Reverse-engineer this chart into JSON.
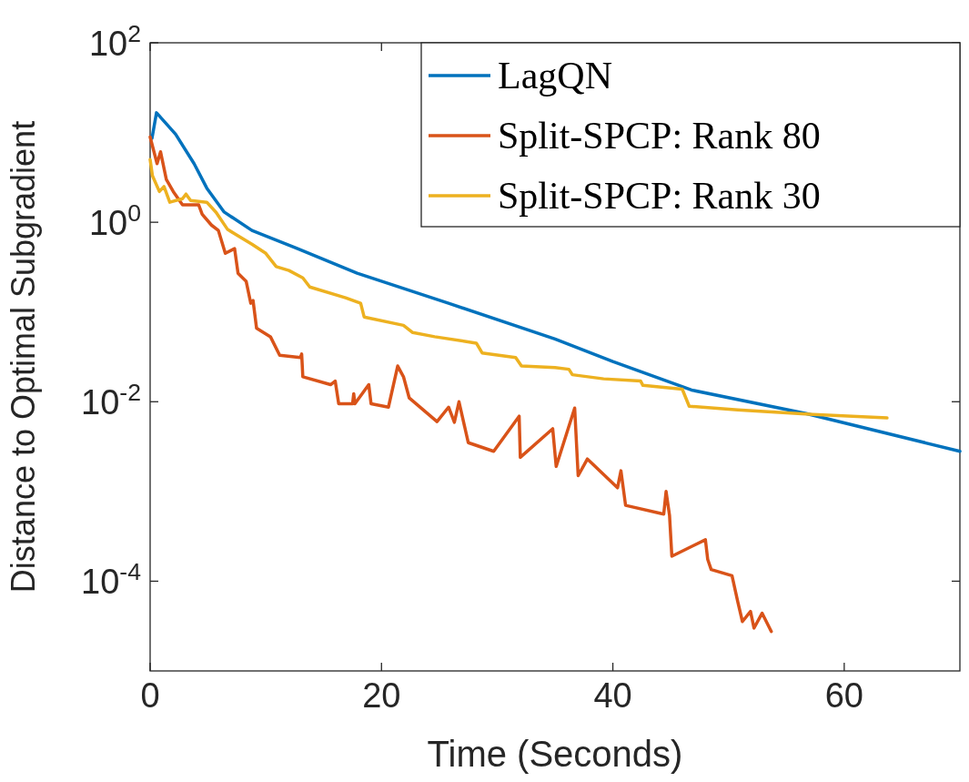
{
  "chart_data": {
    "type": "line",
    "xlabel": "Time (Seconds)",
    "ylabel": "Distance to Optimal Subgradient",
    "log": "y",
    "xlim": [
      0,
      70
    ],
    "ylim": [
      1e-05,
      100
    ],
    "xticks": [
      0,
      20,
      40,
      60
    ],
    "yticks": [
      {
        "value": 100,
        "label": "10$^{2}$"
      },
      {
        "value": 1,
        "label": "10$^{0}$"
      },
      {
        "value": 0.01,
        "label": "10$^{-2}$"
      },
      {
        "value": 0.0001,
        "label": "10$^{-4}$"
      }
    ],
    "grid": false,
    "legend": "top right",
    "line_style": "solid",
    "marker": "none",
    "series": [
      {
        "name": "LagQN",
        "color": "#0072bd",
        "x": [
          0.16,
          0.55,
          2.2,
          3.8,
          4.9,
          6.4,
          8.8,
          12.7,
          17.9,
          25.8,
          35.0,
          40,
          46.8,
          56.7,
          70
        ],
        "values": [
          8.6,
          16.6,
          9.6,
          4.5,
          2.4,
          1.3,
          0.81,
          0.51,
          0.27,
          0.125,
          0.05,
          0.028,
          0.0135,
          0.0074,
          0.0028
        ]
      },
      {
        "name": "Split-SPCP: Rank 80",
        "color": "#d95319",
        "x": [
          0,
          0.6,
          0.9,
          1.4,
          2.0,
          2.8,
          4.2,
          4.5,
          5.3,
          5.9,
          6.5,
          7.3,
          7.6,
          8.3,
          8.7,
          8.9,
          9.2,
          10.4,
          11.2,
          13.0,
          13.1,
          13.2,
          15.6,
          16.0,
          16.3,
          17.5,
          17.6,
          17.7,
          18.9,
          19.1,
          20.6,
          21.4,
          21.9,
          22.4,
          24.8,
          25.8,
          26.3,
          26.7,
          27.5,
          29.7,
          31.9,
          32.0,
          34.8,
          35.1,
          36.7,
          37.0,
          37.8,
          40.4,
          40.7,
          41.1,
          44.4,
          44.6,
          44.9,
          45.1,
          48.0,
          48.2,
          48.5,
          50.3,
          50.8,
          51.2,
          51.9,
          52.2,
          52.9,
          53.7
        ],
        "values": [
          8.9,
          4.5,
          6.1,
          3.0,
          2.2,
          1.56,
          1.56,
          1.23,
          0.93,
          0.81,
          0.45,
          0.51,
          0.27,
          0.22,
          0.125,
          0.134,
          0.066,
          0.053,
          0.033,
          0.031,
          0.034,
          0.019,
          0.0155,
          0.017,
          0.0095,
          0.0095,
          0.0123,
          0.0095,
          0.0155,
          0.0095,
          0.0087,
          0.025,
          0.019,
          0.011,
          0.006,
          0.0087,
          0.0059,
          0.01,
          0.0035,
          0.0028,
          0.0069,
          0.0024,
          0.005,
          0.0019,
          0.0085,
          0.0015,
          0.0023,
          0.0011,
          0.0017,
          0.0007,
          0.00056,
          0.001,
          0.00054,
          0.00019,
          0.00029,
          0.000175,
          0.000135,
          0.000115,
          5.9e-05,
          3.55e-05,
          4.6e-05,
          3e-05,
          4.4e-05,
          2.75e-05
        ]
      },
      {
        "name": "Split-SPCP: Rank 30",
        "color": "#edb120",
        "x": [
          0,
          0.2,
          0.8,
          1.2,
          1.7,
          2.8,
          3.1,
          3.5,
          4.9,
          5.7,
          6.7,
          8.8,
          10.0,
          10.9,
          12.0,
          13.2,
          13.8,
          16.9,
          18.2,
          18.5,
          21.9,
          22.7,
          24.6,
          28.2,
          28.7,
          31.6,
          32.1,
          35.0,
          36.2,
          36.5,
          39.2,
          42.4,
          42.6,
          46.0,
          46.6,
          50.8,
          57.3,
          63.7
        ],
        "values": [
          5.0,
          3.3,
          2.2,
          2.5,
          1.67,
          1.83,
          2.06,
          1.75,
          1.67,
          1.29,
          0.83,
          0.57,
          0.45,
          0.32,
          0.29,
          0.24,
          0.19,
          0.144,
          0.125,
          0.088,
          0.071,
          0.059,
          0.053,
          0.045,
          0.035,
          0.031,
          0.025,
          0.024,
          0.023,
          0.02,
          0.018,
          0.017,
          0.0152,
          0.0138,
          0.0089,
          0.0081,
          0.0072,
          0.0066
        ]
      }
    ]
  }
}
